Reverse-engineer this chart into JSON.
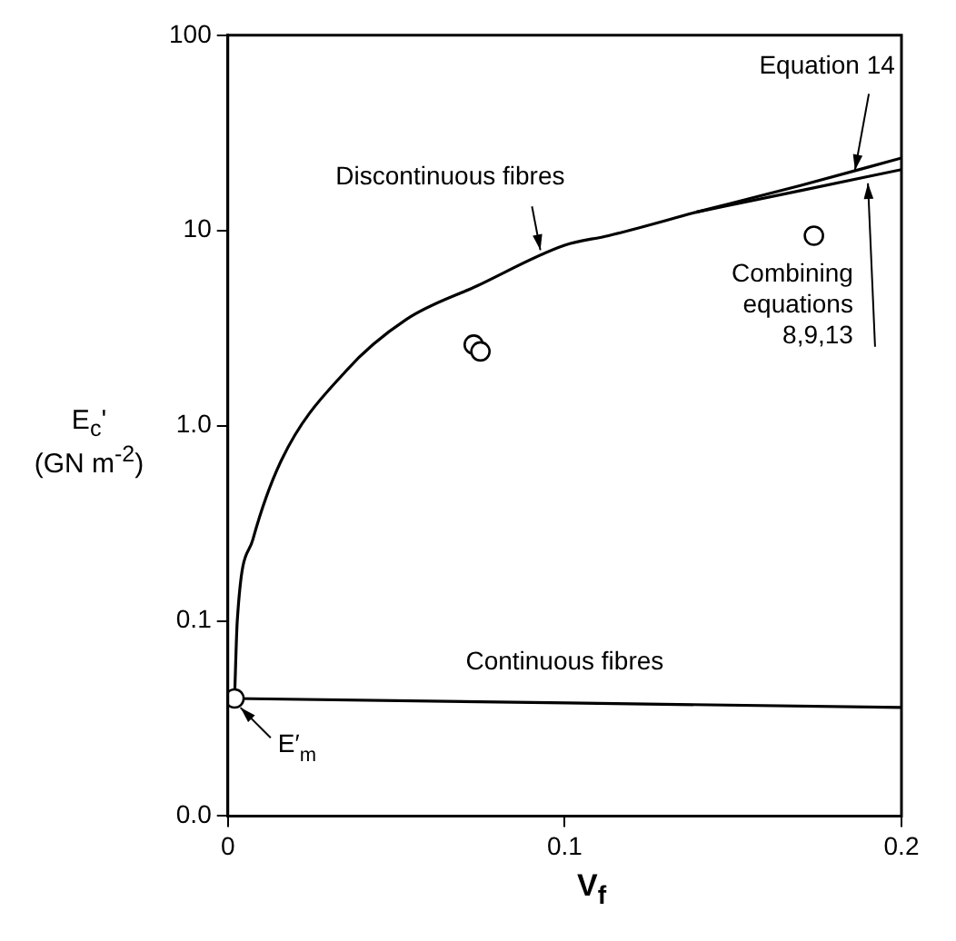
{
  "chart_data": {
    "type": "line",
    "xlabel": "V$_{f}$",
    "ylabel": "E$_{c}$'\n(GN m$^{-2}$)",
    "log": "y",
    "grid": false,
    "legend": false,
    "marker": "none",
    "xlim": [
      0,
      0.2
    ],
    "xticks": [
      0,
      0.1,
      0.2
    ],
    "ylim": [
      0.01,
      100
    ],
    "yticks": [
      {
        "value": 0.01,
        "label": "0.0"
      },
      {
        "value": 0.1,
        "label": "0.1"
      },
      {
        "value": 1,
        "label": "1.0"
      },
      10,
      100
    ],
    "series": [
      {
        "type": "line",
        "color": "#000000",
        "x": [
          0.002,
          0.0028,
          0.0074,
          0.016,
          0.035,
          0.053,
          0.074,
          0.1,
          0.113,
          0.139
        ],
        "values": [
          0.04,
          0.1,
          0.26,
          0.67,
          1.9,
          3.5,
          5.2,
          8.4,
          9.4,
          12.4
        ]
      },
      {
        "type": "line",
        "color": "#000000",
        "x": [
          0.139,
          0.17,
          0.2
        ],
        "values": [
          12.4,
          17,
          23.5
        ]
      },
      {
        "type": "line",
        "color": "#000000",
        "x": [
          0.139,
          0.17,
          0.2
        ],
        "values": [
          12.4,
          16,
          20.5
        ]
      },
      {
        "type": "line",
        "color": "#000000",
        "x": [
          0.002,
          0.2
        ],
        "values": [
          0.04,
          0.036
        ]
      },
      {
        "type": "scatter",
        "color": "#000000",
        "marker": "circle",
        "x": [
          0.002,
          0.073,
          0.075,
          0.174
        ],
        "values": [
          0.04,
          2.6,
          2.4,
          9.4
        ]
      }
    ],
    "annotations": [
      {
        "text": "Discontinuous fibres",
        "x": 0.093,
        "y": 7.6
      },
      {
        "text": "Equation 14",
        "x": 0.186,
        "y": 19.5
      },
      {
        "text": "Combining\nequations\n8,9,13",
        "x": 0.19,
        "y": 18.2
      },
      {
        "text": "Continuous fibres",
        "x": 0.1,
        "y": 0.04
      },
      {
        "text": "E′$_{m}$",
        "x": 0.003,
        "y": 0.037
      }
    ]
  }
}
